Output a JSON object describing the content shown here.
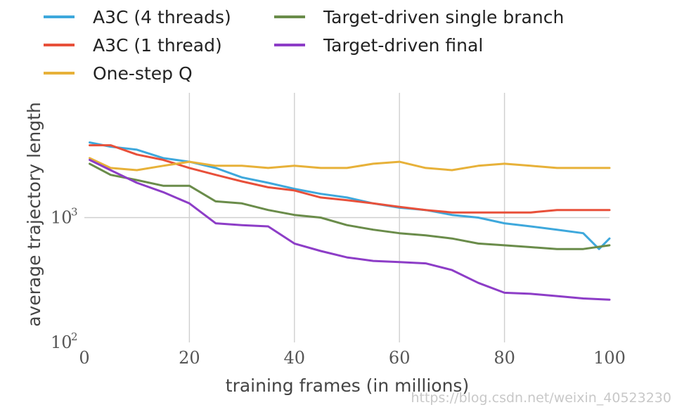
{
  "chart_data": {
    "type": "line",
    "xlabel": "training frames (in millions)",
    "ylabel": "average trajectory length",
    "xlim": [
      0,
      100
    ],
    "ylim": [
      100,
      10000
    ],
    "yscale": "log",
    "x_ticks": [
      0,
      20,
      40,
      60,
      80,
      100
    ],
    "y_ticks": [
      {
        "base": "10",
        "exp": "2",
        "value": 100
      },
      {
        "base": "10",
        "exp": "3",
        "value": 1000
      }
    ],
    "grid": true,
    "legend_position": "top",
    "series": [
      {
        "name": "A3C (4 threads)",
        "color": "#3ea8dc",
        "x": [
          1,
          5,
          10,
          15,
          20,
          25,
          30,
          35,
          40,
          45,
          50,
          55,
          60,
          65,
          70,
          75,
          80,
          85,
          90,
          95,
          98,
          100
        ],
        "y": [
          4000,
          3700,
          3500,
          3000,
          2800,
          2500,
          2100,
          1900,
          1700,
          1550,
          1450,
          1300,
          1200,
          1150,
          1050,
          1000,
          900,
          850,
          800,
          750,
          560,
          680
        ]
      },
      {
        "name": "A3C (1 thread)",
        "color": "#e8503a",
        "x": [
          1,
          5,
          10,
          15,
          20,
          25,
          30,
          35,
          40,
          45,
          50,
          55,
          60,
          65,
          70,
          75,
          80,
          85,
          90,
          95,
          100
        ],
        "y": [
          3800,
          3800,
          3200,
          2900,
          2500,
          2200,
          1950,
          1750,
          1650,
          1450,
          1380,
          1300,
          1220,
          1150,
          1100,
          1100,
          1100,
          1100,
          1150,
          1150,
          1150
        ]
      },
      {
        "name": "One-step Q",
        "color": "#e7b139",
        "x": [
          1,
          5,
          10,
          15,
          20,
          25,
          30,
          35,
          40,
          45,
          50,
          55,
          60,
          65,
          70,
          75,
          80,
          85,
          90,
          95,
          100
        ],
        "y": [
          3000,
          2500,
          2400,
          2600,
          2800,
          2600,
          2600,
          2500,
          2600,
          2500,
          2500,
          2700,
          2800,
          2500,
          2400,
          2600,
          2700,
          2600,
          2500,
          2500,
          2500
        ]
      },
      {
        "name": "Target-driven single branch",
        "color": "#6a8c4a",
        "x": [
          1,
          5,
          10,
          15,
          20,
          25,
          30,
          35,
          40,
          45,
          50,
          55,
          60,
          65,
          70,
          75,
          80,
          85,
          90,
          95,
          100
        ],
        "y": [
          2700,
          2200,
          2000,
          1800,
          1800,
          1350,
          1300,
          1150,
          1050,
          1000,
          870,
          800,
          750,
          720,
          680,
          620,
          600,
          580,
          560,
          560,
          600
        ]
      },
      {
        "name": "Target-driven final",
        "color": "#8d3dc7",
        "x": [
          1,
          5,
          10,
          15,
          20,
          25,
          30,
          35,
          40,
          45,
          50,
          55,
          60,
          65,
          70,
          75,
          80,
          85,
          90,
          95,
          100
        ],
        "y": [
          2900,
          2400,
          1900,
          1600,
          1300,
          900,
          870,
          850,
          620,
          540,
          480,
          450,
          440,
          430,
          380,
          300,
          250,
          245,
          235,
          225,
          220
        ]
      }
    ],
    "watermark": "https://blog.csdn.net/weixin_40523230"
  }
}
